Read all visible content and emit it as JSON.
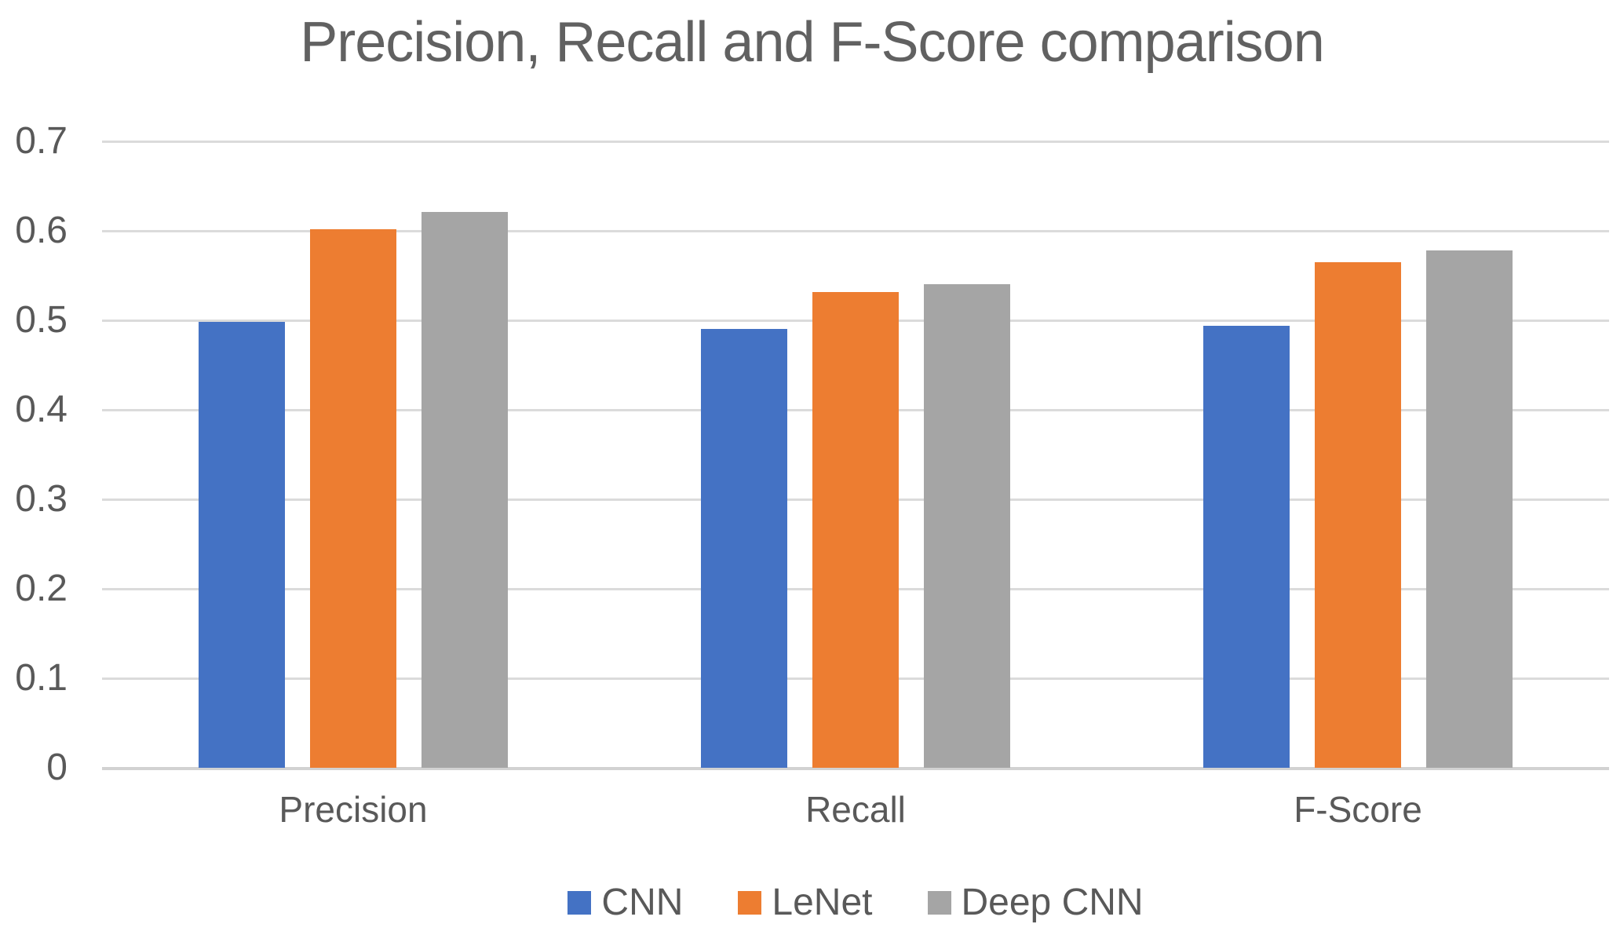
{
  "title": "Precision, Recall and F-Score comparison",
  "colors": {
    "background": "#ffffff",
    "title_text": "#616161",
    "axis_text": "#595959",
    "gridline": "#dbdbdb",
    "axis_line": "#d2d2d2",
    "series_cnn": "#4472C4",
    "series_lenet": "#ED7D31",
    "series_deep_cnn": "#A5A5A5"
  },
  "chart_data": {
    "type": "bar",
    "title": "Precision, Recall and F-Score comparison",
    "categories": [
      "Precision",
      "Recall",
      "F-Score"
    ],
    "series": [
      {
        "name": "CNN",
        "color": "#4472C4",
        "values": [
          0.498,
          0.49,
          0.494
        ]
      },
      {
        "name": "LeNet",
        "color": "#ED7D31",
        "values": [
          0.602,
          0.532,
          0.565
        ]
      },
      {
        "name": "Deep CNN",
        "color": "#A5A5A5",
        "values": [
          0.621,
          0.54,
          0.578
        ]
      }
    ],
    "xlabel": "",
    "ylabel": "",
    "ylim": [
      0,
      0.7
    ],
    "ytick_step": 0.1,
    "yticks": [
      "0.7",
      "0.6",
      "0.5",
      "0.4",
      "0.3",
      "0.2",
      "0.1",
      "0"
    ],
    "grid": true,
    "legend_position": "bottom",
    "legend_entries": [
      "CNN",
      "LeNet",
      "Deep CNN"
    ]
  }
}
